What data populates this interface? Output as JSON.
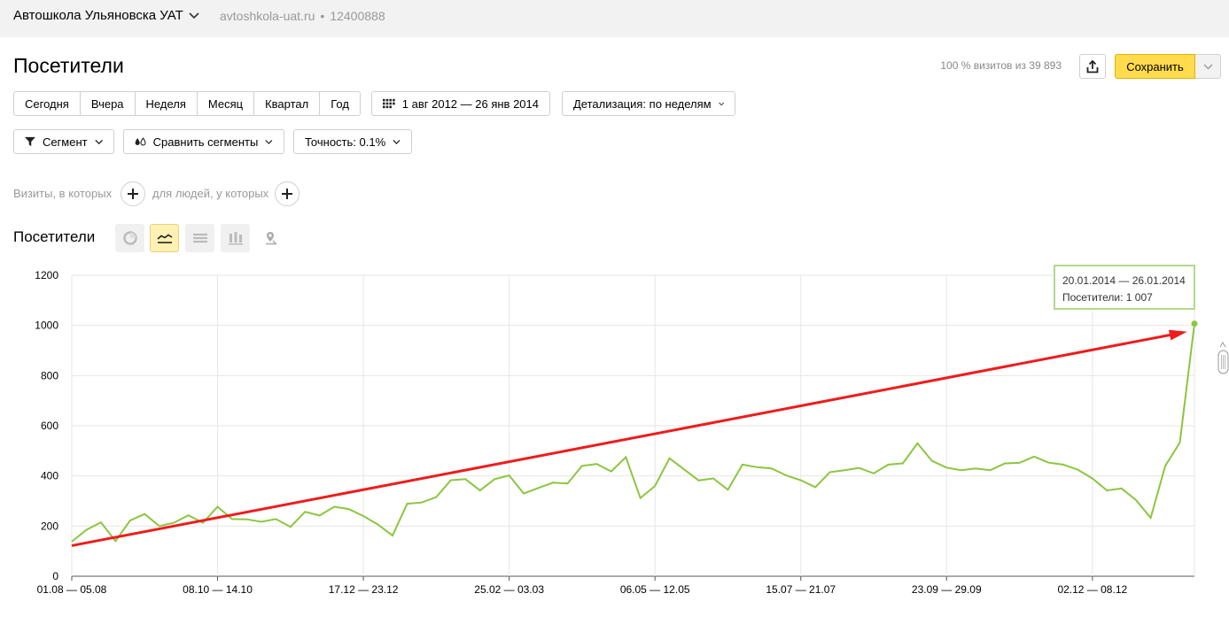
{
  "header": {
    "counter_name": "Автошкола Ульяновска УАТ",
    "domain": "avtoshkola-uat.ru",
    "separator": "•",
    "counter_id": "12400888"
  },
  "page": {
    "title": "Посетители",
    "visits_share": "100 % визитов из 39 893",
    "save_label": "Сохранить"
  },
  "periods": [
    "Сегодня",
    "Вчера",
    "Неделя",
    "Месяц",
    "Квартал",
    "Год"
  ],
  "date_range": "1 авг 2012 — 26 янв 2014",
  "detail": "Детализация: по неделям",
  "segment": "Сегмент",
  "compare": "Сравнить сегменты",
  "accuracy": "Точность: 0.1%",
  "filters": {
    "visits_label": "Визиты, в которых",
    "people_label": "для людей, у которых"
  },
  "section_title": "Посетители",
  "chart_types": [
    "pie-chart-icon",
    "line-chart-icon",
    "area-chart-icon",
    "bar-chart-icon",
    "map-icon"
  ],
  "tooltip": {
    "period": "20.01.2014 — 26.01.2014",
    "value_line": "Посетители: 1 007"
  },
  "colors": {
    "line": "#8cc63f",
    "arrow": "#ee1c1c",
    "save_button": "#ffdb4d",
    "active_chart_type": "#fff0b3"
  },
  "chart_data": {
    "type": "line",
    "ylim": [
      0,
      1200
    ],
    "y_ticks": [
      "0",
      "200",
      "400",
      "600",
      "800",
      "1000",
      "1200"
    ],
    "x_tick_labels": [
      "01.08 — 05.08",
      "08.10 — 14.10",
      "17.12 — 23.12",
      "25.02 — 03.03",
      "06.05 — 12.05",
      "15.07 — 21.07",
      "23.09 — 29.09",
      "02.12 — 08.12"
    ],
    "x_tick_week_index": [
      0,
      10,
      20,
      30,
      40,
      50,
      60,
      70
    ],
    "grid": true,
    "series": [
      {
        "values": [
          138,
          185,
          215,
          140,
          222,
          248,
          200,
          213,
          243,
          213,
          277,
          228,
          227,
          217,
          228,
          197,
          257,
          242,
          277,
          268,
          240,
          206,
          162,
          289,
          294,
          316,
          383,
          387,
          342,
          387,
          402,
          330,
          352,
          373,
          370,
          440,
          448,
          418,
          475,
          312,
          360,
          470,
          426,
          382,
          390,
          345,
          445,
          435,
          430,
          402,
          383,
          355,
          415,
          423,
          432,
          410,
          445,
          450,
          530,
          460,
          433,
          423,
          430,
          423,
          450,
          452,
          477,
          453,
          445,
          425,
          390,
          342,
          350,
          303,
          233,
          440,
          533,
          1007
        ]
      }
    ],
    "trend_arrow": {
      "from_week": 0,
      "from_value": 122,
      "to_week": 76.5,
      "to_value": 975
    }
  }
}
